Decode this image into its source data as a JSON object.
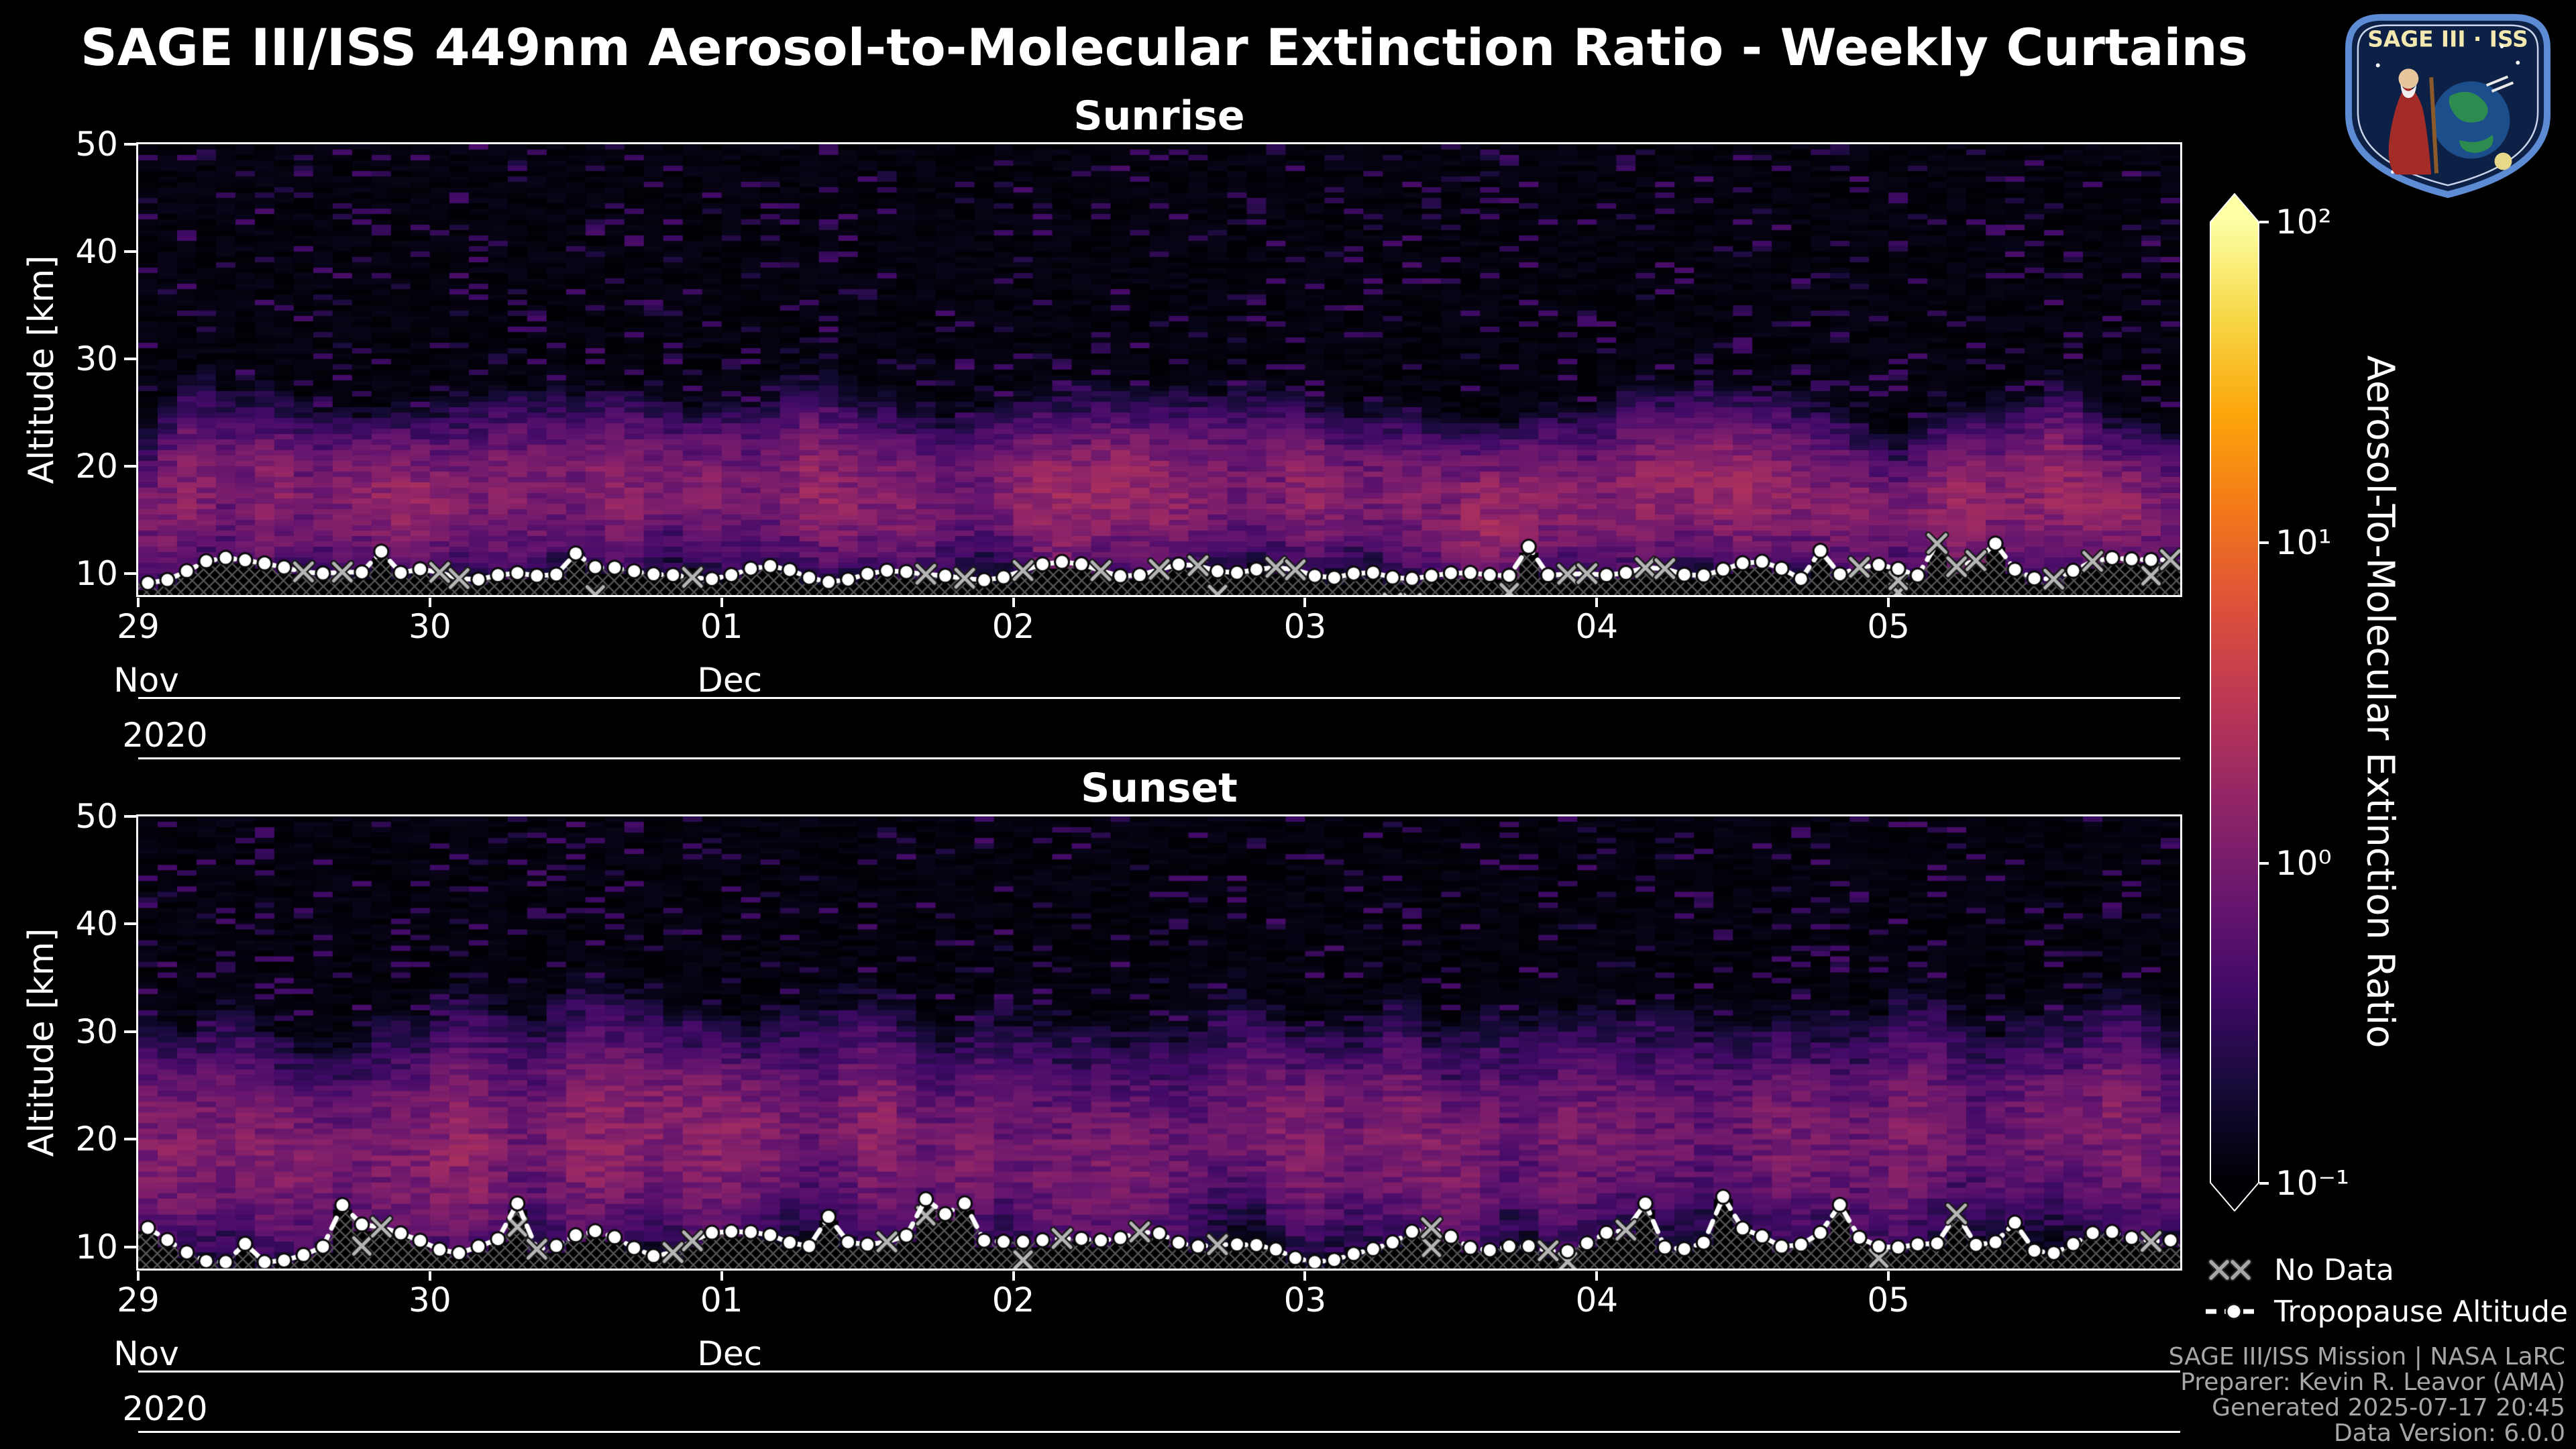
{
  "header": {
    "title": "SAGE III/ISS 449nm Aerosol-to-Molecular Extinction Ratio - Weekly Curtains"
  },
  "logo": {
    "text": "SAGE III · ISS"
  },
  "colorbar": {
    "title": "Aerosol-To-Molecular Extinction Ratio",
    "scale": "log",
    "vmin": 0.1,
    "vmax": 100,
    "colormap": "inferno",
    "extend": "both",
    "tick_labels": [
      "10²",
      "10¹",
      "10⁰",
      "10⁻¹"
    ]
  },
  "legend": {
    "no_data": "No Data",
    "tropopause": "Tropopause Altitude"
  },
  "footer": {
    "lines": [
      "SAGE III/ISS Mission | NASA LaRC",
      "Preparer: Kevin R. Leavor (AMA)",
      "Generated 2025-07-17 20:45",
      "Data Version: 6.0.0"
    ]
  },
  "chart_data": [
    {
      "type": "heatmap",
      "title": "Sunrise",
      "ylabel": "Altitude [km]",
      "ylim": [
        8,
        50
      ],
      "yticks": [
        10,
        20,
        30,
        40,
        50
      ],
      "x_axis": {
        "day_labels": [
          "29",
          "30",
          "01",
          "02",
          "03",
          "04",
          "05"
        ],
        "total_days": 7,
        "month_labels": [
          {
            "label": "Nov",
            "day_index": 0
          },
          {
            "label": "Dec",
            "day_index": 2
          }
        ],
        "year": "2020"
      },
      "value_units": "aerosol-to-molecular extinction ratio at 449 nm",
      "value_range": [
        0.1,
        100
      ],
      "aerosol_layer": {
        "bottom_km": 11,
        "top_km": 27,
        "peak_center_km": 17,
        "peak_ratio_approx": 2
      },
      "tropopause_altitude_km_range": [
        9,
        13
      ],
      "no_data_region": "hatched region below tropopause"
    },
    {
      "type": "heatmap",
      "title": "Sunset",
      "ylabel": "Altitude [km]",
      "ylim": [
        8,
        50
      ],
      "yticks": [
        10,
        20,
        30,
        40,
        50
      ],
      "x_axis": {
        "day_labels": [
          "29",
          "30",
          "01",
          "02",
          "03",
          "04",
          "05"
        ],
        "total_days": 7,
        "month_labels": [
          {
            "label": "Nov",
            "day_index": 0
          },
          {
            "label": "Dec",
            "day_index": 2
          }
        ],
        "year": "2020"
      },
      "value_units": "aerosol-to-molecular extinction ratio at 449 nm",
      "value_range": [
        0.1,
        100
      ],
      "aerosol_layer": {
        "bottom_km": 10,
        "top_km": 31,
        "peak_center_km": 20,
        "peak_ratio_approx": 1.5
      },
      "tropopause_altitude_km_range": [
        8.5,
        15
      ],
      "no_data_region": "hatched region below tropopause"
    }
  ]
}
